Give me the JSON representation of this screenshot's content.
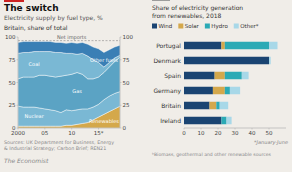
{
  "chart_data": [
    {
      "type": "area",
      "stacked": true,
      "title": "The switch",
      "subtitle": "Electricity supply by fuel type, %",
      "annotations": [
        "Britain, share of total",
        "Sources: UK Department for Business, Energy\n& Industrial Strategy; Carbon Brief; REN21",
        "The Economist"
      ],
      "x": [
        2000,
        2001,
        2002,
        2003,
        2004,
        2005,
        2006,
        2007,
        2008,
        2009,
        2010,
        2011,
        2012,
        2013,
        2014,
        2015,
        2016,
        2017,
        2018,
        2019
      ],
      "series": [
        {
          "name": "Renewables",
          "color": "#d4a84b",
          "values": [
            2,
            2,
            2,
            2,
            2,
            2,
            2,
            2,
            2,
            3,
            3,
            4,
            5,
            6,
            9,
            12,
            15,
            18,
            21,
            24
          ]
        },
        {
          "name": "Nuclear",
          "color": "#7ab8d4",
          "values": [
            22,
            21,
            21,
            21,
            20,
            19,
            18,
            17,
            15,
            17,
            16,
            16,
            16,
            15,
            14,
            14,
            16,
            17,
            17,
            16
          ]
        },
        {
          "name": "Gas",
          "color": "#5ba3c4",
          "values": [
            30,
            33,
            33,
            33,
            36,
            37,
            37,
            37,
            40,
            38,
            40,
            41,
            38,
            33,
            31,
            30,
            30,
            32,
            35,
            38
          ]
        },
        {
          "name": "Coal",
          "color": "#7ab8d4",
          "values": [
            28,
            27,
            27,
            28,
            26,
            26,
            27,
            27,
            26,
            24,
            23,
            20,
            23,
            25,
            21,
            16,
            6,
            5,
            4,
            2
          ]
        },
        {
          "name": "Other fuels",
          "color": "#3a7fb5",
          "values": [
            12,
            12,
            12,
            11,
            11,
            11,
            11,
            11,
            11,
            11,
            12,
            12,
            12,
            13,
            14,
            15,
            16,
            14,
            12,
            11
          ]
        },
        {
          "name": "Net imports",
          "type": "line",
          "line_style": "dashed",
          "color": "#888888",
          "values": [
            96,
            96,
            96,
            96,
            96,
            96,
            96,
            96,
            96,
            96,
            96,
            96,
            96,
            96,
            96,
            96,
            96,
            96,
            96,
            96
          ]
        }
      ],
      "xlim": [
        2000,
        2019
      ],
      "xticks": [
        2000,
        {
          "value": 2005,
          "label": "05"
        },
        {
          "value": 2010,
          "label": "10"
        },
        {
          "value": 2015,
          "label": "15*"
        }
      ],
      "ylim": [
        0,
        100
      ],
      "yticks": [
        0,
        25,
        50,
        75,
        100
      ],
      "y2lim": [
        0,
        100
      ],
      "y2ticks": [
        0,
        25,
        50,
        75,
        100
      ],
      "grid": false
    },
    {
      "type": "bar",
      "orientation": "horizontal",
      "stacked": true,
      "title": "Share of electricity generation",
      "subtitle": "from renewables, 2018",
      "annotations": [
        "*January-June",
        "ᵇBiomass, geothermal and other renewable sources"
      ],
      "categories": [
        "Portugal",
        "Denmark",
        "Spain",
        "Germany",
        "Britain",
        "Ireland"
      ],
      "series": [
        {
          "name": "Wind",
          "color": "#1a4472",
          "values": [
            22,
            50,
            18,
            17,
            15,
            22
          ]
        },
        {
          "name": "Solar",
          "color": "#d4a84b",
          "values": [
            2,
            0,
            6,
            7,
            4,
            0
          ]
        },
        {
          "name": "Hydro",
          "color": "#2baab5",
          "values": [
            26,
            0,
            10,
            3,
            2,
            3
          ]
        },
        {
          "name": "Other*",
          "color": "#a8d8e8",
          "values": [
            5,
            1,
            4,
            6,
            5,
            3
          ]
        }
      ],
      "xlim": [
        0,
        60
      ],
      "xticks": [
        0,
        10,
        20,
        30,
        40,
        50
      ],
      "legend": "top",
      "grid": false
    }
  ]
}
